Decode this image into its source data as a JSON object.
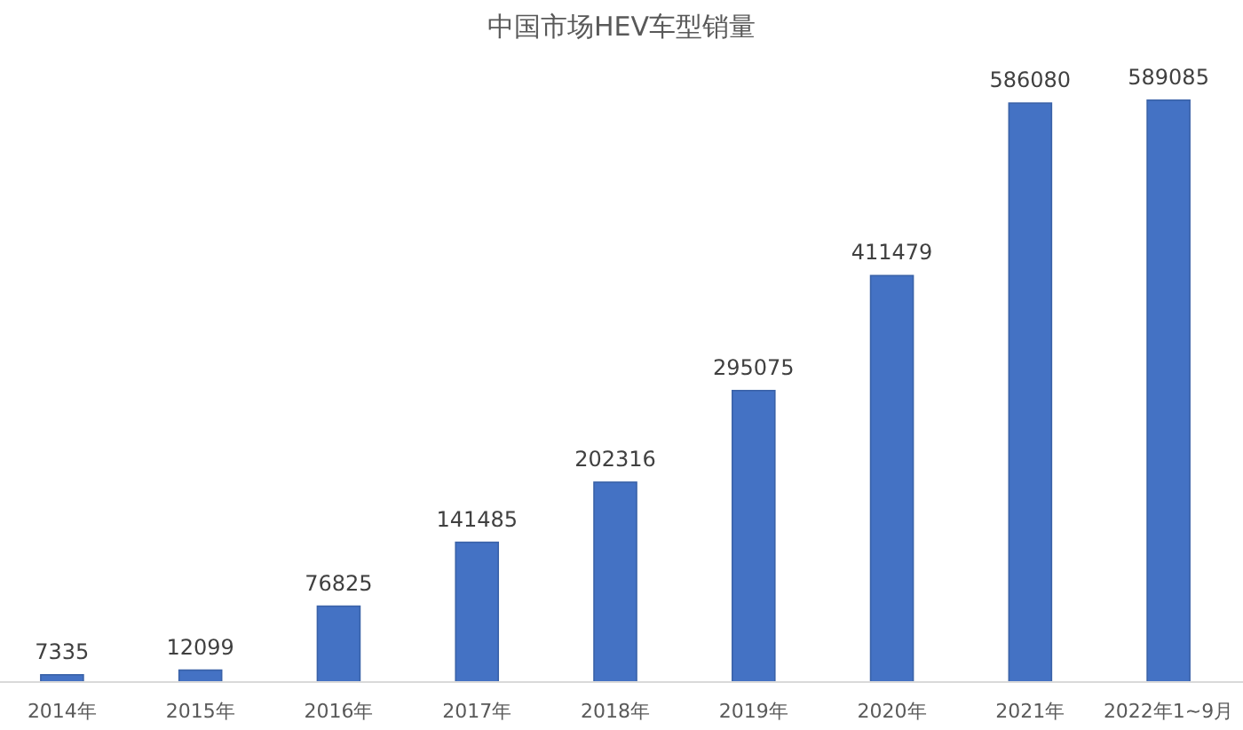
{
  "chart_data": {
    "type": "bar",
    "title": "中国市场HEV车型销量",
    "categories": [
      "2014年",
      "2015年",
      "2016年",
      "2017年",
      "2018年",
      "2019年",
      "2020年",
      "2021年",
      "2022年1~9月"
    ],
    "values": [
      7335,
      12099,
      76825,
      141485,
      202316,
      295075,
      411479,
      586080,
      589085
    ],
    "color": "#4472c4",
    "data_labels": true
  }
}
